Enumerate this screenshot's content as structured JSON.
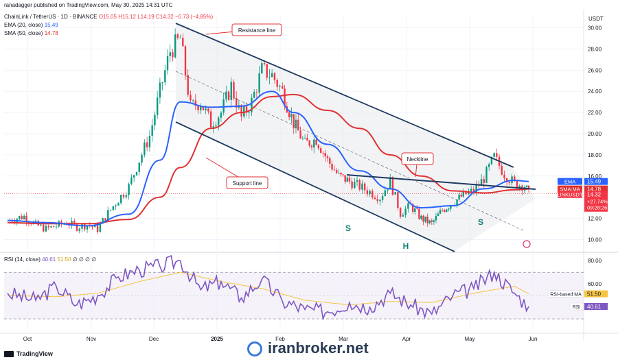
{
  "header": {
    "published": "ranadagger published on TradingView.com, May 30, 2025 14:31 UTC",
    "symbol": "ChainLink / TetherUS · 1D · BINANCE",
    "open": "O15.05",
    "high": "H15.12",
    "low": "L14.19",
    "close": "C14.32",
    "change": "−0.73 (−4.85%)",
    "ema_label": "EMA (20, close)",
    "ema_value": "15.49",
    "sma_label": "SMA (50, close)",
    "sma_value": "14.78",
    "rsi_label": "RSI (14, close)",
    "rsi_value": "40.61",
    "rsi_ma_value": "51.50",
    "rsi_extra": "∅ ∅ ∅ ∅"
  },
  "footer": {
    "brand": "TradingView",
    "watermark": "iranbroker.net"
  },
  "colors": {
    "up": "#089981",
    "down": "#f23645",
    "ema": "#2962ff",
    "sma": "#e03131",
    "trend": "#1e3a5f",
    "rsi": "#7e57c2",
    "rsi_ma": "#f5c542",
    "annotation": "#e03131"
  },
  "chart_data": [
    {
      "type": "candlestick",
      "currency": "USDT",
      "y_ticks": [
        10.0,
        12.0,
        14.0,
        16.0,
        18.0,
        20.0,
        22.0,
        24.0,
        26.0,
        28.0,
        30.0
      ],
      "ylim": [
        8.8,
        31.2
      ],
      "x_ticks": [
        "Oct",
        "Nov",
        "Dec",
        "2025",
        "Feb",
        "Mar",
        "Apr",
        "May",
        "Jun"
      ],
      "candles": {
        "x": [
          "Sep 25",
          "Sep 30",
          "Oct 5",
          "Oct 10",
          "Oct 15",
          "Oct 20",
          "Oct 25",
          "Oct 30",
          "Nov 4",
          "Nov 9",
          "Nov 14",
          "Nov 19",
          "Nov 24",
          "Nov 29",
          "Dec 4",
          "Dec 9",
          "Dec 14",
          "Dec 19",
          "Dec 24",
          "Dec 29",
          "Jan 3",
          "Jan 8",
          "Jan 13",
          "Jan 18",
          "Jan 23",
          "Jan 28",
          "Feb 2",
          "Feb 7",
          "Feb 12",
          "Feb 17",
          "Feb 22",
          "Feb 27",
          "Mar 4",
          "Mar 9",
          "Mar 14",
          "Mar 19",
          "Mar 24",
          "Mar 29",
          "Apr 3",
          "Apr 8",
          "Apr 13",
          "Apr 18",
          "Apr 23",
          "Apr 28",
          "May 3",
          "May 8",
          "May 13",
          "May 18",
          "May 23",
          "May 28",
          "May 30"
        ],
        "close": [
          11.8,
          12.2,
          11.4,
          11.0,
          11.3,
          11.6,
          11.2,
          11.4,
          11.0,
          12.5,
          13.8,
          15.0,
          17.5,
          19.8,
          24.0,
          27.8,
          29.0,
          22.5,
          23.0,
          21.0,
          22.0,
          24.5,
          21.5,
          23.0,
          26.0,
          25.5,
          24.0,
          21.0,
          19.0,
          19.5,
          17.5,
          16.0,
          15.5,
          15.0,
          14.5,
          14.0,
          15.5,
          12.5,
          13.2,
          12.0,
          11.5,
          12.8,
          13.5,
          14.2,
          14.6,
          15.8,
          17.8,
          16.2,
          15.3,
          15.1,
          14.32
        ]
      },
      "series": [
        {
          "name": "EMA",
          "x": [
            "Sep 25",
            "Oct 10",
            "Oct 30",
            "Nov 19",
            "Dec 4",
            "Dec 14",
            "Dec 29",
            "Jan 13",
            "Jan 28",
            "Feb 7",
            "Feb 22",
            "Mar 9",
            "Mar 24",
            "Apr 8",
            "Apr 23",
            "May 8",
            "May 23",
            "May 30"
          ],
          "values": [
            11.8,
            11.6,
            11.3,
            12.4,
            17.5,
            23.0,
            22.5,
            22.6,
            24.0,
            22.0,
            19.0,
            16.5,
            14.8,
            13.0,
            13.2,
            14.8,
            15.6,
            15.49
          ]
        },
        {
          "name": "SMA",
          "x": [
            "Sep 25",
            "Oct 10",
            "Oct 30",
            "Nov 19",
            "Dec 4",
            "Dec 14",
            "Dec 29",
            "Jan 13",
            "Jan 28",
            "Feb 7",
            "Feb 22",
            "Mar 9",
            "Mar 24",
            "Apr 8",
            "Apr 23",
            "May 8",
            "May 23",
            "May 30"
          ],
          "values": [
            11.6,
            11.5,
            11.5,
            11.9,
            14.0,
            16.8,
            20.5,
            22.0,
            23.5,
            23.7,
            22.2,
            20.5,
            18.0,
            16.0,
            14.6,
            14.4,
            14.7,
            14.78
          ]
        }
      ],
      "price_labels": [
        {
          "name": "EMA",
          "value": "15.49"
        },
        {
          "name": "SMA:MA",
          "value": "14.78"
        },
        {
          "name": "LINKUSDT",
          "value": "14.32",
          "extra": [
            "+27.74%",
            "09:28:26"
          ]
        }
      ],
      "annotations": [
        "Resistance line",
        "Support line",
        "Neckline"
      ],
      "pattern_labels": [
        "S",
        "H",
        "S"
      ]
    },
    {
      "type": "line",
      "title": "RSI (14, close)",
      "y_ticks": [
        40.0,
        60.0,
        80.0
      ],
      "ylim": [
        20,
        86
      ],
      "band": [
        30,
        70
      ],
      "series": [
        {
          "name": "RSI",
          "x": [
            "Sep 25",
            "Oct 5",
            "Oct 15",
            "Oct 25",
            "Nov 4",
            "Nov 14",
            "Nov 24",
            "Dec 4",
            "Dec 14",
            "Dec 24",
            "Jan 3",
            "Jan 13",
            "Jan 23",
            "Feb 2",
            "Feb 12",
            "Feb 22",
            "Mar 4",
            "Mar 14",
            "Mar 24",
            "Apr 3",
            "Apr 13",
            "Apr 23",
            "May 3",
            "May 13",
            "May 23",
            "May 30"
          ],
          "values": [
            52,
            46,
            58,
            42,
            50,
            66,
            72,
            75,
            80,
            55,
            62,
            48,
            64,
            45,
            38,
            36,
            44,
            40,
            52,
            42,
            34,
            50,
            56,
            70,
            52,
            40.61
          ]
        },
        {
          "name": "RSI-based MA",
          "x": [
            "Sep 25",
            "Oct 15",
            "Nov 4",
            "Nov 24",
            "Dec 14",
            "Jan 3",
            "Jan 23",
            "Feb 12",
            "Mar 4",
            "Mar 24",
            "Apr 13",
            "May 3",
            "May 23",
            "May 30"
          ],
          "values": [
            50,
            49,
            52,
            62,
            70,
            62,
            56,
            46,
            42,
            45,
            44,
            52,
            58,
            51.5
          ]
        }
      ],
      "price_labels": [
        {
          "name": "RSI-based MA",
          "value": "51.50"
        },
        {
          "name": "RSI",
          "value": "40.61"
        }
      ]
    }
  ]
}
